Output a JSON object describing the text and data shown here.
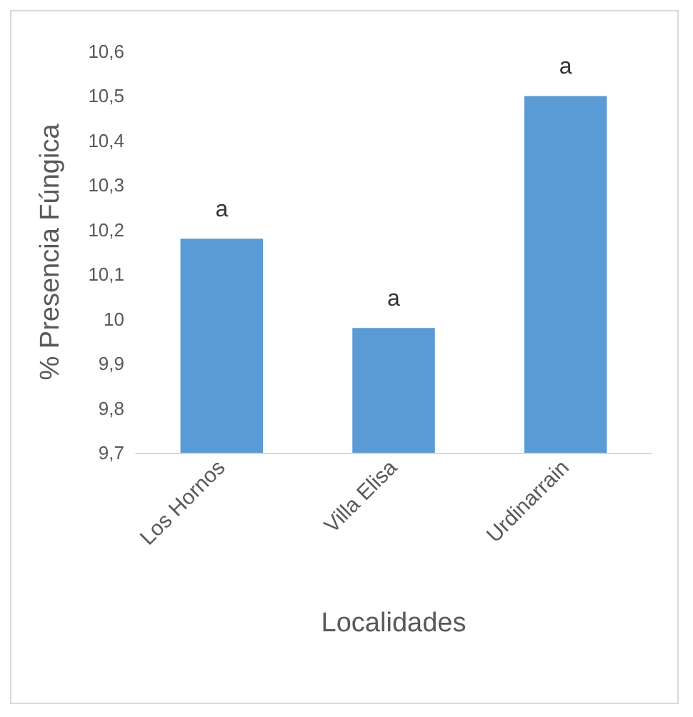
{
  "chart_data": {
    "type": "bar",
    "xlabel": "Localidades",
    "ylabel": "% Presencia Fúngica",
    "categories": [
      "Los Hornos",
      "Villa Elisa",
      "Urdinarrain"
    ],
    "values": [
      10.18,
      9.98,
      10.5
    ],
    "color": "#5b9bd5",
    "ylim": [
      9.7,
      10.6
    ],
    "yticks": [
      {
        "value": 9.7,
        "label": "9,7"
      },
      {
        "value": 9.8,
        "label": "9,8"
      },
      {
        "value": 9.9,
        "label": "9,9"
      },
      {
        "value": 10,
        "label": "10"
      },
      {
        "value": 10.1,
        "label": "10,1"
      },
      {
        "value": 10.2,
        "label": "10,2"
      },
      {
        "value": 10.3,
        "label": "10,3"
      },
      {
        "value": 10.4,
        "label": "10,4"
      },
      {
        "value": 10.5,
        "label": "10,5"
      },
      {
        "value": 10.6,
        "label": "10,6"
      }
    ],
    "grid": false,
    "annotations": [
      {
        "text": "a",
        "x": "Los Hornos",
        "y": 10.18
      },
      {
        "text": "a",
        "x": "Villa Elisa",
        "y": 9.98
      },
      {
        "text": "a",
        "x": "Urdinarrain",
        "y": 10.5
      }
    ]
  }
}
